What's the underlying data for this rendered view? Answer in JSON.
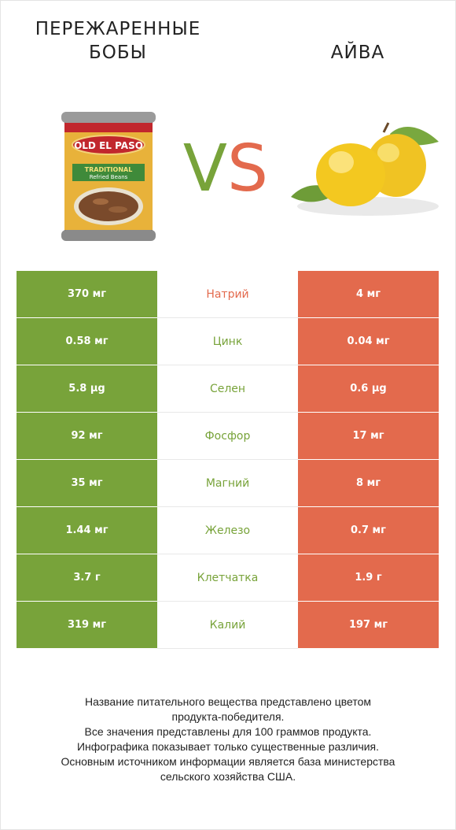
{
  "header": {
    "left_title_line1": "Пережаренные",
    "left_title_line2": "бобы",
    "right_title": "Айва",
    "vs_v": "V",
    "vs_s": "S"
  },
  "colors": {
    "left": "#78a33a",
    "right": "#e36a4d"
  },
  "images": {
    "left": "refried-beans-can-image",
    "right": "quince-fruit-image"
  },
  "chart_data": {
    "type": "table",
    "columns": [
      "Пережаренные бобы",
      "",
      "Айва"
    ],
    "rows": [
      {
        "left": "370 мг",
        "nutrient": "Натрий",
        "right": "4 мг",
        "winner": "right"
      },
      {
        "left": "0.58 мг",
        "nutrient": "Цинк",
        "right": "0.04 мг",
        "winner": "left"
      },
      {
        "left": "5.8 µg",
        "nutrient": "Селен",
        "right": "0.6 µg",
        "winner": "left"
      },
      {
        "left": "92 мг",
        "nutrient": "Фосфор",
        "right": "17 мг",
        "winner": "left"
      },
      {
        "left": "35 мг",
        "nutrient": "Магний",
        "right": "8 мг",
        "winner": "left"
      },
      {
        "left": "1.44 мг",
        "nutrient": "Железо",
        "right": "0.7 мг",
        "winner": "left"
      },
      {
        "left": "3.7 г",
        "nutrient": "Клетчатка",
        "right": "1.9 г",
        "winner": "left"
      },
      {
        "left": "319 мг",
        "nutrient": "Калий",
        "right": "197 мг",
        "winner": "left"
      }
    ]
  },
  "footer": {
    "lines": [
      "Название питательного вещества представлено цветом",
      "продукта-победителя.",
      "Все значения представлены для 100 граммов продукта.",
      "Инфографика показывает только существенные различия.",
      "Основным источником информации является база министерства",
      "сельского хозяйства США."
    ]
  }
}
